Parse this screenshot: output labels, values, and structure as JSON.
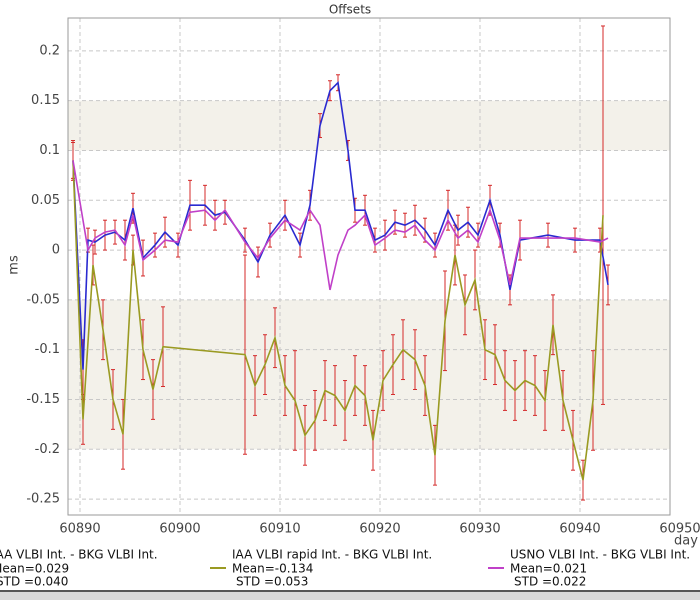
{
  "chart_data": {
    "type": "line",
    "title": "Offsets",
    "x_label": "day",
    "y_label": "ms",
    "xlim": [
      60888.8,
      60949
    ],
    "xticks": [
      60890,
      60900,
      60910,
      60920,
      60930,
      60940,
      60950
    ],
    "ylim": [
      -0.266,
      0.233
    ],
    "yticks": [
      0.2,
      0.15,
      0.1,
      0.05,
      0,
      -0.05,
      -0.1,
      -0.15,
      -0.2,
      -0.25
    ],
    "grid": true,
    "error_color": "#d42a2a",
    "legend": "bottom",
    "series": [
      {
        "name": "IAA VLBI Int. - BKG VLBI Int.",
        "color": "#2a2ad0",
        "stats": [
          "Mean=0.029",
          "STD =0.040"
        ],
        "x": [
          60889.3,
          60890.3,
          60890.8,
          60891.5,
          60892.5,
          60893.5,
          60894.5,
          60895.3,
          60896.3,
          60897.5,
          60898.5,
          60899.8,
          60901,
          60902.5,
          60903.5,
          60904.5,
          60906.5,
          60907.8,
          60909,
          60910.5,
          60912,
          60913,
          60914,
          60915,
          60915.8,
          60916.8,
          60917.5,
          60918.5,
          60919.5,
          60920.5,
          60921.5,
          60922.5,
          60923.5,
          60924.5,
          60925.5,
          60926.8,
          60927.8,
          60928.8,
          60929.8,
          60931,
          60932,
          60933,
          60934,
          60936.8,
          60939.5,
          60942,
          60942.8
        ],
        "values": [
          0.09,
          -0.12,
          0.01,
          0.008,
          0.015,
          0.018,
          0.01,
          0.042,
          -0.008,
          0.005,
          0.018,
          0.005,
          0.045,
          0.045,
          0.035,
          0.038,
          0.01,
          -0.012,
          0.015,
          0.035,
          0.005,
          0.045,
          0.125,
          0.16,
          0.168,
          0.1,
          0.04,
          0.04,
          0.01,
          0.015,
          0.028,
          0.025,
          0.03,
          0.02,
          0.005,
          0.04,
          0.02,
          0.028,
          0.015,
          0.05,
          0.015,
          -0.04,
          0.01,
          0.015,
          0.01,
          0.01,
          -0.035
        ],
        "errors": [
          0.018,
          0.03,
          0.012,
          0.012,
          0.015,
          0.012,
          0.02,
          0.015,
          0.018,
          0.012,
          0.015,
          0.012,
          0.025,
          0.02,
          0.015,
          0.012,
          0.012,
          0.015,
          0.012,
          0.015,
          0.012,
          0.015,
          0.012,
          0.01,
          0.008,
          0.01,
          0.012,
          0.015,
          0.012,
          0.015,
          0.012,
          0.012,
          0.015,
          0.012,
          0.012,
          0.02,
          0.015,
          0.015,
          0.012,
          0.015,
          0.012,
          0.015,
          0.02,
          0.012,
          0.012,
          0.012,
          0.02
        ]
      },
      {
        "name": "IAA VLBI rapid Int. - BKG VLBI Int.",
        "color": "#9a9a22",
        "stats": [
          "Mean=-0.134",
          "STD =0.053"
        ],
        "x": [
          60889.3,
          60890.3,
          60891.3,
          60892.3,
          60893.3,
          60894.3,
          60895.3,
          60896.3,
          60897.3,
          60898.3,
          60906.5,
          60907.5,
          60908.5,
          60909.5,
          60910.5,
          60911.5,
          60912.5,
          60913.5,
          60914.5,
          60915.5,
          60916.5,
          60917.5,
          60918.5,
          60919.3,
          60920.3,
          60921.3,
          60922.3,
          60923.5,
          60924.5,
          60925.5,
          60926.5,
          60927.5,
          60928.5,
          60929.5,
          60930.5,
          60931.5,
          60932.5,
          60933.5,
          60934.5,
          60935.5,
          60936.5,
          60937.3,
          60938.3,
          60939.3,
          60940.3,
          60941.3,
          60942.3
        ],
        "values": [
          0.09,
          -0.17,
          -0.015,
          -0.08,
          -0.15,
          -0.185,
          0.0,
          -0.1,
          -0.14,
          -0.097,
          -0.105,
          -0.136,
          -0.115,
          -0.088,
          -0.136,
          -0.151,
          -0.186,
          -0.171,
          -0.141,
          -0.146,
          -0.161,
          -0.136,
          -0.146,
          -0.191,
          -0.131,
          -0.115,
          -0.1,
          -0.11,
          -0.136,
          -0.206,
          -0.071,
          -0.005,
          -0.055,
          -0.03,
          -0.1,
          -0.105,
          -0.131,
          -0.141,
          -0.131,
          -0.136,
          -0.151,
          -0.075,
          -0.151,
          -0.191,
          -0.231,
          -0.151,
          0.035
        ],
        "errors": [
          0.02,
          0.025,
          0.02,
          0.03,
          0.03,
          0.035,
          0.015,
          0.03,
          0.03,
          0.04,
          0.1,
          0.03,
          0.03,
          0.03,
          0.03,
          0.05,
          0.03,
          0.03,
          0.03,
          0.03,
          0.03,
          0.03,
          0.03,
          0.03,
          0.03,
          0.03,
          0.03,
          0.03,
          0.03,
          0.03,
          0.05,
          0.03,
          0.03,
          0.03,
          0.03,
          0.03,
          0.03,
          0.03,
          0.03,
          0.03,
          0.03,
          0.03,
          0.03,
          0.03,
          0.02,
          0.05,
          0.19
        ]
      },
      {
        "name": "USNO VLBI Int. - BKG VLBI Int.",
        "color": "#c040c8",
        "stats": [
          "Mean=0.021",
          "STD =0.022"
        ],
        "x": [
          60889.3,
          60890.3,
          60890.8,
          60891.5,
          60892.5,
          60893.5,
          60894.5,
          60895.3,
          60896.3,
          60897.5,
          60898.5,
          60899.8,
          60901,
          60902.5,
          60903.5,
          60904.5,
          60906.5,
          60907.8,
          60909,
          60910.5,
          60912,
          60913,
          60914,
          60915,
          60915.8,
          60916.8,
          60917.5,
          60918.5,
          60919.5,
          60920.5,
          60921.5,
          60922.5,
          60923.5,
          60924.5,
          60925.5,
          60926.8,
          60927.8,
          60928.8,
          60929.8,
          60931,
          60932,
          60933,
          60934,
          60936.8,
          60939.5,
          60942,
          60942.8
        ],
        "values": [
          0.09,
          0.03,
          0.0,
          0.012,
          0.018,
          0.02,
          0.005,
          0.035,
          -0.01,
          0.0,
          0.01,
          0.008,
          0.038,
          0.04,
          0.03,
          0.04,
          0.008,
          -0.008,
          0.012,
          0.03,
          0.02,
          0.04,
          0.025,
          -0.04,
          -0.005,
          0.02,
          0.025,
          0.035,
          0.005,
          0.012,
          0.02,
          0.018,
          0.025,
          0.01,
          0.0,
          0.03,
          0.012,
          0.02,
          0.008,
          0.04,
          0.01,
          -0.035,
          0.012,
          0.012,
          0.012,
          0.008,
          0.012
        ]
      }
    ]
  }
}
